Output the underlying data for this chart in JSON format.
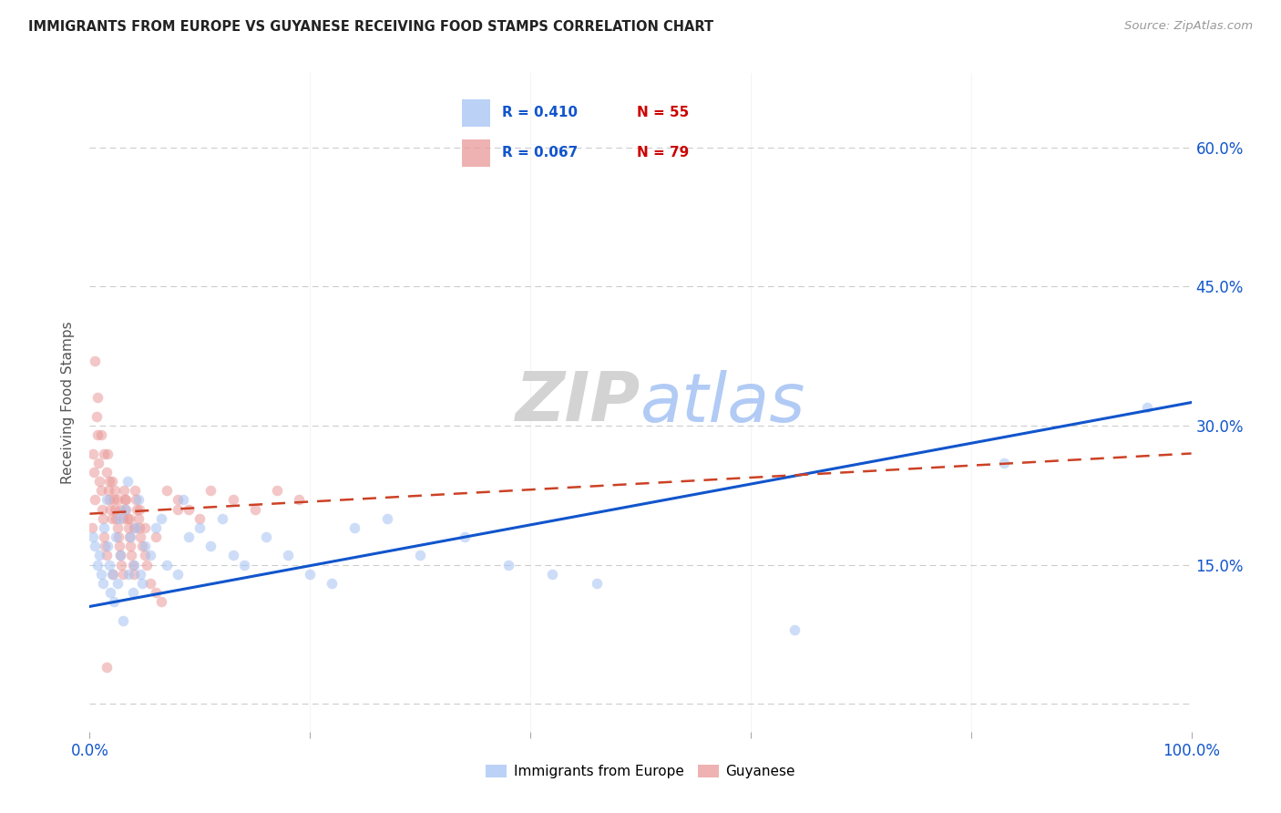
{
  "title": "IMMIGRANTS FROM EUROPE VS GUYANESE RECEIVING FOOD STAMPS CORRELATION CHART",
  "source": "Source: ZipAtlas.com",
  "ylabel": "Receiving Food Stamps",
  "xlim": [
    0.0,
    1.0
  ],
  "ylim": [
    -0.03,
    0.68
  ],
  "ytick_vals": [
    0.0,
    0.15,
    0.3,
    0.45,
    0.6
  ],
  "yticklabels_right": [
    "",
    "15.0%",
    "30.0%",
    "45.0%",
    "60.0%"
  ],
  "xtick_positions": [
    0.0,
    0.2,
    0.4,
    0.6,
    0.8,
    1.0
  ],
  "xticklabels": [
    "0.0%",
    "",
    "",
    "",
    "",
    "100.0%"
  ],
  "blue_color": "#a4c2f4",
  "pink_color": "#ea9999",
  "blue_line_color": "#1155cc",
  "pink_line_color": "#cc4125",
  "grid_color": "#cccccc",
  "background_color": "#ffffff",
  "watermark_zip": "ZIP",
  "watermark_atlas": "atlas",
  "watermark_zip_color": "#cccccc",
  "watermark_atlas_color": "#a4c2f4",
  "legend_blue_R": "R = 0.410",
  "legend_blue_N": "N = 55",
  "legend_pink_R": "R = 0.067",
  "legend_pink_N": "N = 79",
  "legend_blue_label": "Immigrants from Europe",
  "legend_pink_label": "Guyanese",
  "blue_R_color": "#1155cc",
  "blue_N_color": "#cc0000",
  "pink_R_color": "#1155cc",
  "pink_N_color": "#cc0000",
  "blue_points_x": [
    0.003,
    0.005,
    0.007,
    0.009,
    0.01,
    0.012,
    0.013,
    0.015,
    0.016,
    0.018,
    0.019,
    0.02,
    0.022,
    0.024,
    0.025,
    0.027,
    0.028,
    0.03,
    0.032,
    0.034,
    0.035,
    0.037,
    0.039,
    0.04,
    0.042,
    0.044,
    0.046,
    0.048,
    0.05,
    0.055,
    0.06,
    0.065,
    0.07,
    0.08,
    0.085,
    0.09,
    0.1,
    0.11,
    0.12,
    0.13,
    0.14,
    0.16,
    0.18,
    0.2,
    0.22,
    0.24,
    0.27,
    0.3,
    0.34,
    0.38,
    0.42,
    0.46,
    0.64,
    0.83,
    0.96
  ],
  "blue_points_y": [
    0.18,
    0.17,
    0.15,
    0.16,
    0.14,
    0.13,
    0.19,
    0.22,
    0.17,
    0.15,
    0.12,
    0.14,
    0.11,
    0.18,
    0.13,
    0.2,
    0.16,
    0.09,
    0.21,
    0.24,
    0.14,
    0.18,
    0.12,
    0.15,
    0.19,
    0.22,
    0.14,
    0.13,
    0.17,
    0.16,
    0.19,
    0.2,
    0.15,
    0.14,
    0.22,
    0.18,
    0.19,
    0.17,
    0.2,
    0.16,
    0.15,
    0.18,
    0.16,
    0.14,
    0.13,
    0.19,
    0.2,
    0.16,
    0.18,
    0.15,
    0.14,
    0.13,
    0.08,
    0.26,
    0.32
  ],
  "pink_points_x": [
    0.002,
    0.003,
    0.004,
    0.005,
    0.006,
    0.007,
    0.008,
    0.009,
    0.01,
    0.011,
    0.012,
    0.013,
    0.014,
    0.015,
    0.016,
    0.017,
    0.018,
    0.019,
    0.02,
    0.021,
    0.022,
    0.023,
    0.024,
    0.025,
    0.026,
    0.027,
    0.028,
    0.029,
    0.03,
    0.031,
    0.032,
    0.033,
    0.034,
    0.035,
    0.036,
    0.037,
    0.038,
    0.039,
    0.04,
    0.041,
    0.042,
    0.043,
    0.044,
    0.045,
    0.046,
    0.048,
    0.05,
    0.052,
    0.055,
    0.06,
    0.065,
    0.07,
    0.08,
    0.09,
    0.1,
    0.11,
    0.13,
    0.15,
    0.17,
    0.19,
    0.005,
    0.007,
    0.01,
    0.013,
    0.015,
    0.018,
    0.02,
    0.023,
    0.025,
    0.028,
    0.03,
    0.033,
    0.036,
    0.04,
    0.045,
    0.05,
    0.06,
    0.08,
    0.015
  ],
  "pink_points_y": [
    0.19,
    0.27,
    0.25,
    0.22,
    0.31,
    0.29,
    0.26,
    0.24,
    0.23,
    0.21,
    0.2,
    0.18,
    0.17,
    0.16,
    0.27,
    0.23,
    0.22,
    0.21,
    0.2,
    0.14,
    0.22,
    0.21,
    0.2,
    0.19,
    0.18,
    0.17,
    0.16,
    0.15,
    0.14,
    0.23,
    0.22,
    0.21,
    0.2,
    0.19,
    0.18,
    0.17,
    0.16,
    0.15,
    0.14,
    0.23,
    0.22,
    0.21,
    0.2,
    0.19,
    0.18,
    0.17,
    0.16,
    0.15,
    0.13,
    0.12,
    0.11,
    0.23,
    0.22,
    0.21,
    0.2,
    0.23,
    0.22,
    0.21,
    0.23,
    0.22,
    0.37,
    0.33,
    0.29,
    0.27,
    0.25,
    0.24,
    0.24,
    0.23,
    0.22,
    0.21,
    0.2,
    0.22,
    0.2,
    0.19,
    0.21,
    0.19,
    0.18,
    0.21,
    0.04
  ],
  "blue_line_x": [
    0.0,
    1.0
  ],
  "blue_line_y": [
    0.105,
    0.325
  ],
  "pink_line_x": [
    0.0,
    1.0
  ],
  "pink_line_y": [
    0.205,
    0.27
  ],
  "marker_size": 70,
  "marker_alpha": 0.55
}
